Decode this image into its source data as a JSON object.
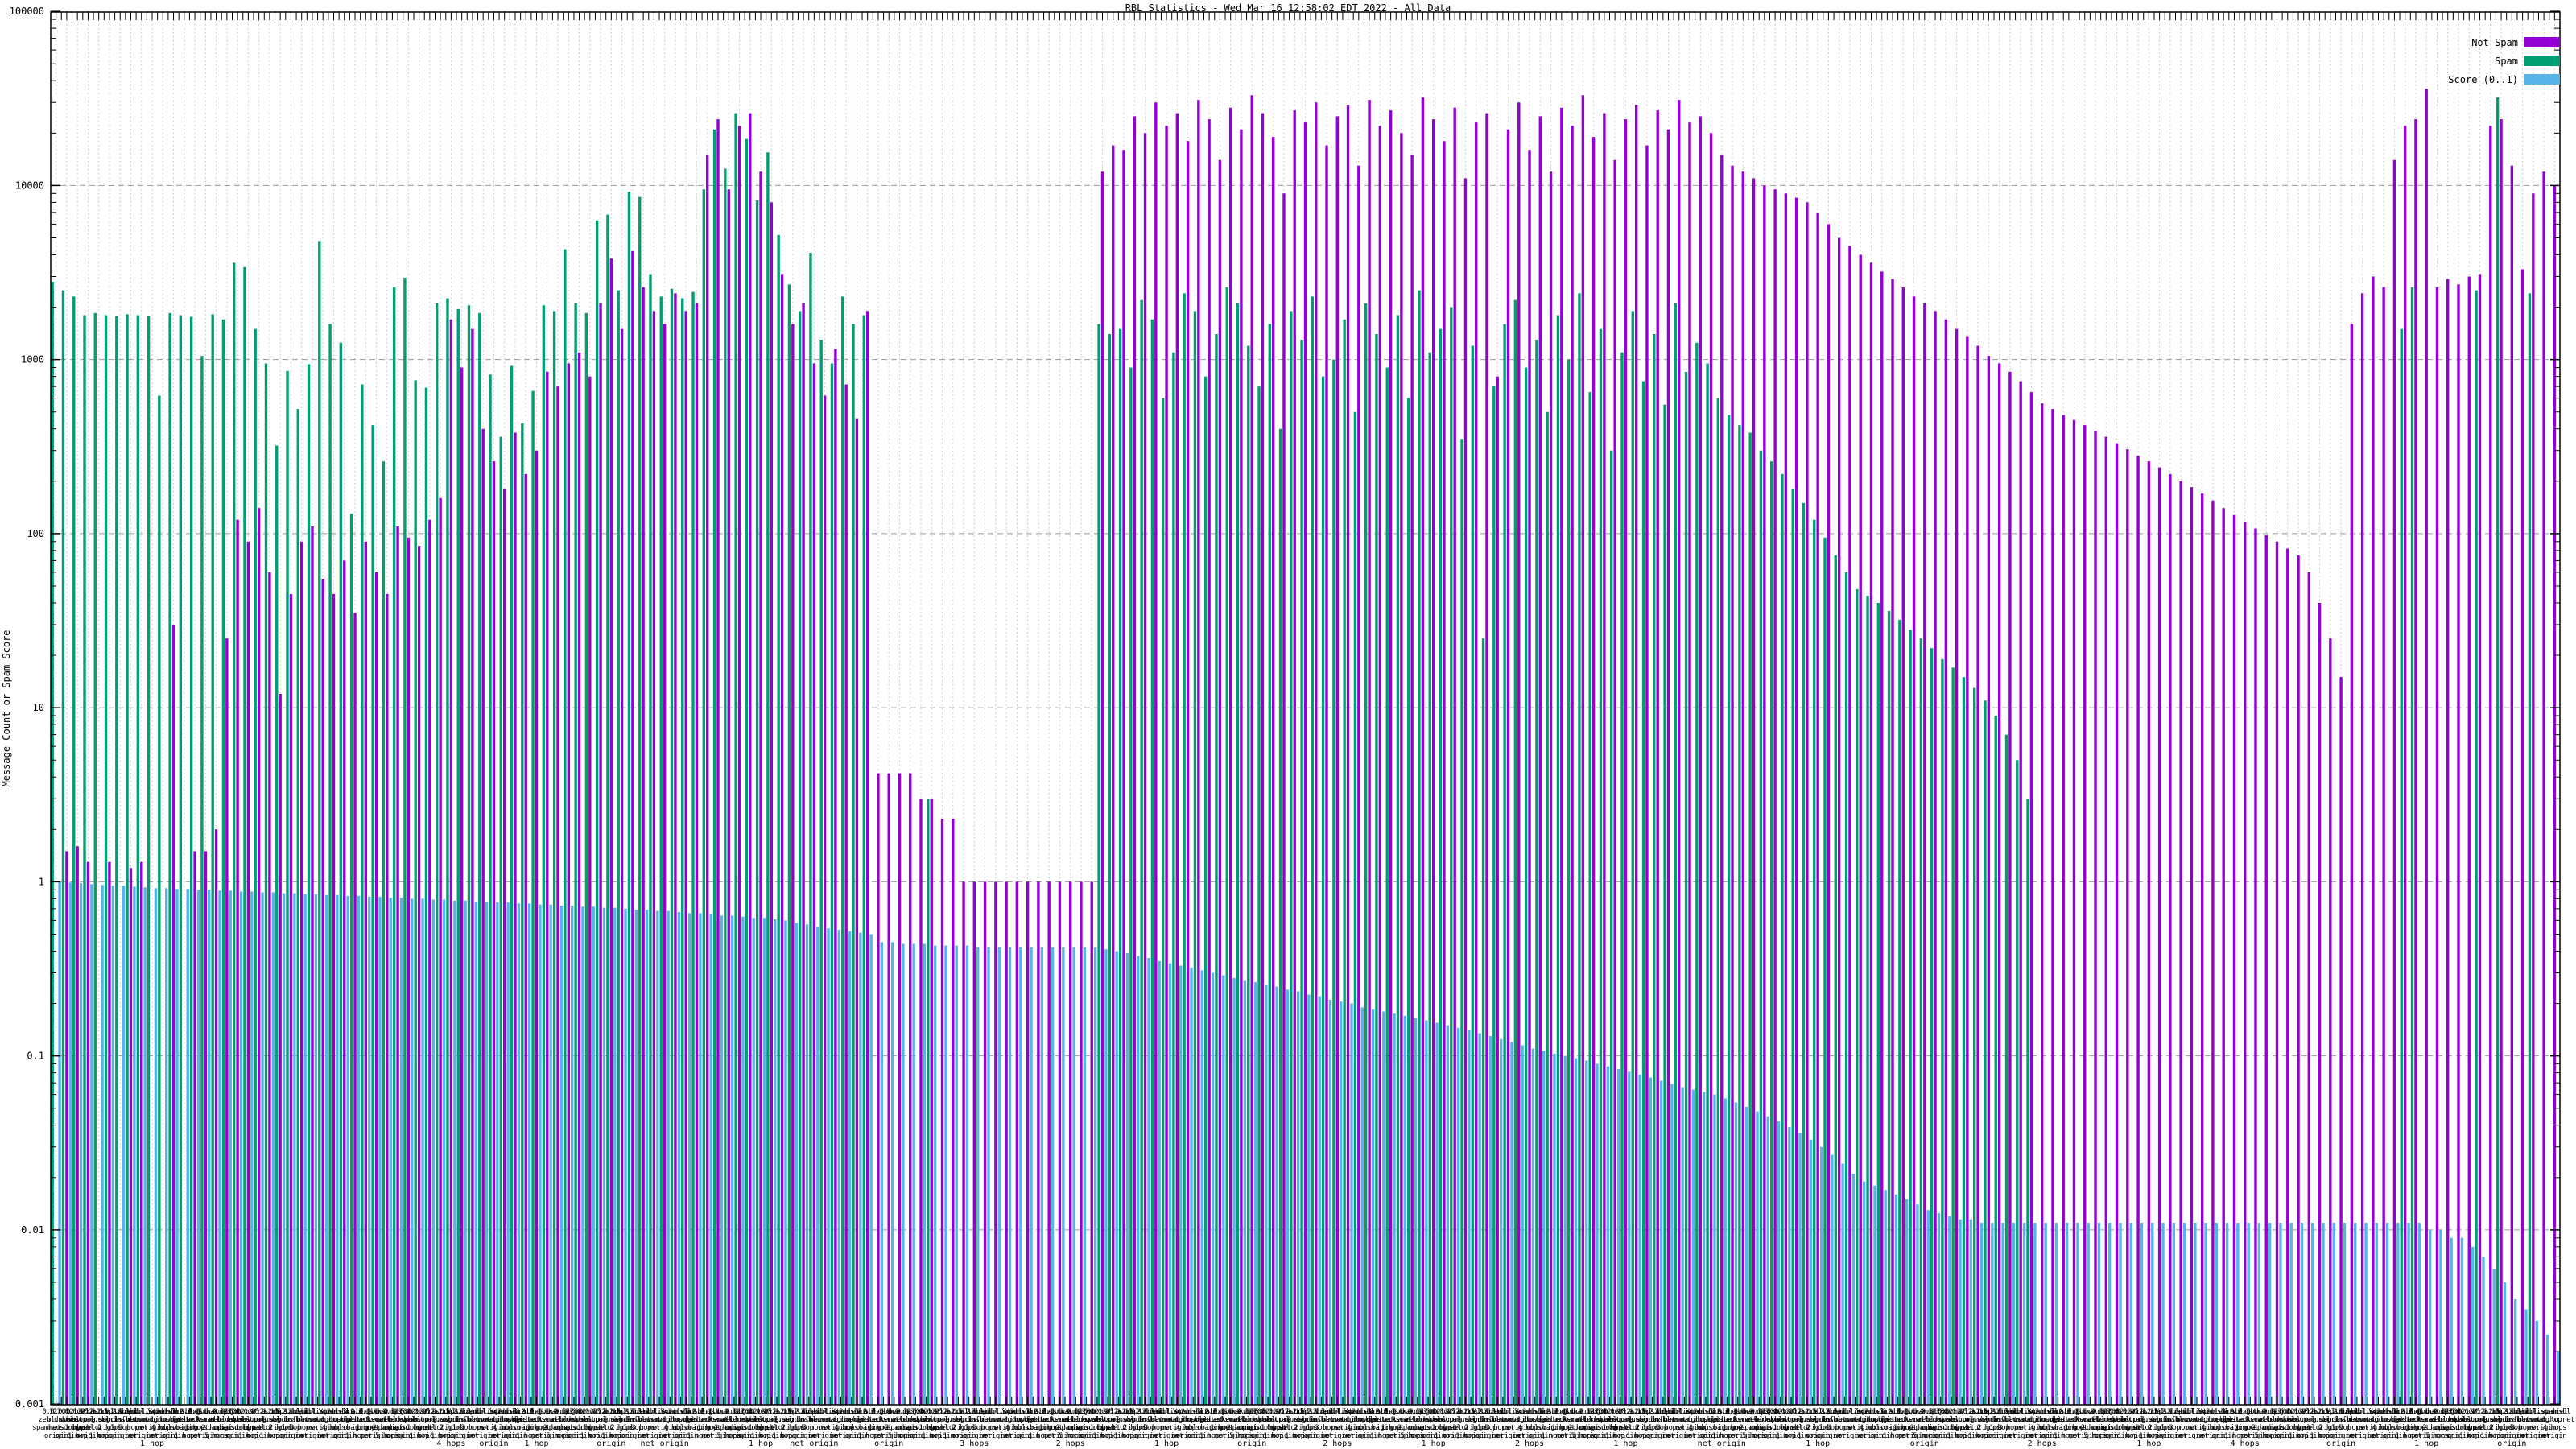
{
  "title": "RBL Statistics - Wed Mar 16 12:58:02 EDT 2022 - All Data",
  "colors": {
    "not_spam": "#9400d3",
    "spam": "#009e73",
    "score": "#56b4e9",
    "grid_major": "#999999",
    "grid_minor": "#bfbfbf",
    "frame": "#000000",
    "background": "#ffffff",
    "text": "#000000"
  },
  "y_axis": {
    "label": "Message Count or Spam Score",
    "scale": "log",
    "min": 0.001,
    "max": 100000,
    "tick_labels": [
      "100000",
      "10000",
      "1000",
      "100",
      "10",
      "1",
      "0.1",
      "0.01",
      "0.001"
    ]
  },
  "legend": [
    {
      "label": "Not Spam",
      "color_key": "not_spam"
    },
    {
      "label": "Spam",
      "color_key": "spam"
    },
    {
      "label": "Score (0..1)",
      "color_key": "score"
    }
  ],
  "x_axis": {
    "description": "235 RBL test categories; wrapped multi-line RBL names overlap illegibly along the axis",
    "legible_fragments": [
      {
        "index": 9,
        "text": "1 hop"
      },
      {
        "index": 37,
        "text": "4 hops"
      },
      {
        "index": 41,
        "text": "origin"
      },
      {
        "index": 45,
        "text": "1 hop"
      },
      {
        "index": 52,
        "text": "origin"
      },
      {
        "index": 57,
        "text": "net origin"
      },
      {
        "index": 66,
        "text": "1 hop"
      },
      {
        "index": 71,
        "text": "net origin"
      },
      {
        "index": 78,
        "text": "origin"
      },
      {
        "index": 86,
        "text": "3 hops"
      },
      {
        "index": 95,
        "text": "2 hops"
      },
      {
        "index": 104,
        "text": "1 hop"
      },
      {
        "index": 112,
        "text": "origin"
      },
      {
        "index": 120,
        "text": "2 hops"
      },
      {
        "index": 129,
        "text": "1 hop"
      },
      {
        "index": 138,
        "text": "2 hops"
      },
      {
        "index": 147,
        "text": "1 hop"
      },
      {
        "index": 156,
        "text": "net origin"
      },
      {
        "index": 165,
        "text": "1 hop"
      },
      {
        "index": 175,
        "text": "origin"
      },
      {
        "index": 186,
        "text": "2 hops"
      },
      {
        "index": 196,
        "text": "1 hop"
      },
      {
        "index": 205,
        "text": "4 hops"
      },
      {
        "index": 214,
        "text": "origin"
      },
      {
        "index": 222,
        "text": "1 hop"
      },
      {
        "index": 230,
        "text": "origin"
      }
    ]
  },
  "chart_data": {
    "type": "bar",
    "y_scale": "log",
    "ylim": [
      0.001,
      100000
    ],
    "n_categories": 235,
    "legend_position": "top-right",
    "grid": true,
    "series": [
      {
        "name": "Not Spam",
        "color_key": "not_spam",
        "values": [
          null,
          1.5,
          1.6,
          1.3,
          null,
          1.3,
          null,
          1.2,
          1.3,
          null,
          null,
          30,
          null,
          1.5,
          1.5,
          2,
          25,
          120,
          90,
          140,
          60,
          12,
          45,
          90,
          110,
          55,
          45,
          70,
          35,
          90,
          60,
          45,
          110,
          95,
          85,
          120,
          160,
          1700,
          900,
          1500,
          400,
          260,
          180,
          380,
          220,
          300,
          850,
          700,
          950,
          1100,
          800,
          2100,
          3800,
          1500,
          4200,
          2600,
          1900,
          1600,
          2400,
          1900,
          2100,
          15000,
          24000,
          9500,
          22000,
          26000,
          12000,
          8000,
          3100,
          1600,
          2100,
          950,
          620,
          1150,
          720,
          460,
          1900,
          4.2,
          4.2,
          4.2,
          4.2,
          3,
          3,
          2.3,
          2.3,
          1,
          1,
          1,
          1,
          1,
          1,
          1,
          1,
          1,
          1,
          1,
          1,
          1,
          12000,
          17000,
          16000,
          25000,
          20000,
          30000,
          22000,
          26000,
          18000,
          31000,
          24000,
          14000,
          28000,
          21000,
          33000,
          26000,
          19000,
          9000,
          27000,
          23000,
          30000,
          17000,
          25000,
          29000,
          13000,
          31000,
          22000,
          27000,
          20000,
          15000,
          32000,
          24000,
          18000,
          28000,
          11000,
          23000,
          26000,
          800,
          21000,
          30000,
          16000,
          25000,
          12000,
          28000,
          22000,
          33000,
          19000,
          26000,
          14000,
          24000,
          29000,
          17000,
          27000,
          21000,
          31000,
          23000,
          25000,
          20000,
          15000,
          13000,
          12000,
          11000,
          10000,
          9500,
          9000,
          8500,
          8000,
          7000,
          6000,
          5000,
          4500,
          4000,
          3600,
          3200,
          2900,
          2600,
          2300,
          2100,
          1900,
          1700,
          1500,
          1350,
          1200,
          1050,
          950,
          850,
          750,
          650,
          560,
          520,
          480,
          450,
          420,
          390,
          360,
          330,
          305,
          280,
          260,
          240,
          220,
          200,
          185,
          170,
          155,
          140,
          128,
          117,
          107,
          98,
          90,
          82,
          75,
          60,
          40,
          25,
          15,
          1600,
          2400,
          3000,
          2600,
          14000,
          22000,
          24000,
          36000,
          2600,
          2900,
          2700,
          3000,
          3100,
          22000,
          24000,
          13000,
          3300,
          9000,
          12000,
          10000
        ]
      },
      {
        "name": "Spam",
        "color_key": "spam",
        "values": [
          2800,
          2500,
          2300,
          1800,
          1850,
          1800,
          1780,
          1820,
          1800,
          1790,
          620,
          1850,
          1800,
          1760,
          1050,
          1820,
          1700,
          3600,
          3400,
          1500,
          950,
          320,
          860,
          520,
          940,
          4800,
          1600,
          1250,
          130,
          720,
          420,
          260,
          2600,
          2950,
          760,
          690,
          2100,
          2250,
          1950,
          2050,
          1850,
          820,
          360,
          920,
          430,
          660,
          2050,
          1900,
          4300,
          2100,
          1850,
          6300,
          6800,
          2500,
          9200,
          8600,
          3100,
          2300,
          2550,
          2250,
          2450,
          9500,
          21000,
          12500,
          26000,
          18500,
          8200,
          15500,
          5200,
          2700,
          1900,
          4100,
          1300,
          950,
          2300,
          1600,
          1800,
          null,
          null,
          null,
          null,
          null,
          3,
          null,
          null,
          null,
          null,
          null,
          null,
          null,
          null,
          null,
          null,
          null,
          null,
          null,
          null,
          null,
          1600,
          1400,
          1500,
          900,
          2200,
          1700,
          600,
          1100,
          2400,
          1900,
          800,
          1400,
          2600,
          2100,
          1200,
          700,
          1600,
          400,
          1900,
          1300,
          2300,
          800,
          1000,
          1700,
          500,
          2100,
          1400,
          900,
          1800,
          600,
          2500,
          1100,
          1500,
          2000,
          350,
          1200,
          25,
          700,
          1600,
          2200,
          900,
          1300,
          500,
          1800,
          1000,
          2400,
          650,
          1500,
          300,
          1100,
          1900,
          750,
          1400,
          550,
          2100,
          850,
          1250,
          950,
          600,
          480,
          420,
          380,
          300,
          260,
          220,
          180,
          150,
          120,
          95,
          75,
          60,
          48,
          44,
          40,
          36,
          32,
          28,
          25,
          22,
          19,
          17,
          15,
          13,
          11,
          9,
          7,
          5,
          3,
          null,
          null,
          null,
          null,
          null,
          null,
          null,
          null,
          null,
          null,
          null,
          null,
          null,
          null,
          null,
          null,
          null,
          null,
          null,
          null,
          null,
          null,
          null,
          null,
          null,
          null,
          null,
          null,
          null,
          null,
          null,
          null,
          null,
          null,
          1500,
          2600,
          null,
          null,
          null,
          null,
          null,
          2500,
          null,
          32000,
          null,
          null,
          2400,
          null,
          null
        ]
      },
      {
        "name": "Score (0..1)",
        "color_key": "score",
        "values": [
          1.0,
          0.99,
          0.98,
          0.97,
          0.96,
          0.95,
          0.95,
          0.94,
          0.93,
          0.92,
          0.92,
          0.91,
          0.91,
          0.9,
          0.9,
          0.89,
          0.89,
          0.88,
          0.88,
          0.87,
          0.87,
          0.86,
          0.86,
          0.85,
          0.85,
          0.84,
          0.84,
          0.83,
          0.83,
          0.82,
          0.82,
          0.81,
          0.81,
          0.8,
          0.8,
          0.79,
          0.79,
          0.78,
          0.78,
          0.77,
          0.77,
          0.76,
          0.76,
          0.75,
          0.75,
          0.74,
          0.74,
          0.73,
          0.73,
          0.72,
          0.72,
          0.71,
          0.71,
          0.7,
          0.69,
          0.69,
          0.68,
          0.68,
          0.67,
          0.66,
          0.66,
          0.65,
          0.64,
          0.64,
          0.63,
          0.62,
          0.62,
          0.61,
          0.6,
          0.58,
          0.57,
          0.55,
          0.54,
          0.53,
          0.52,
          0.51,
          0.5,
          0.45,
          0.45,
          0.44,
          0.44,
          0.44,
          0.43,
          0.43,
          0.43,
          0.43,
          0.42,
          0.42,
          0.42,
          0.42,
          0.42,
          0.42,
          0.42,
          0.42,
          0.42,
          0.42,
          0.42,
          0.42,
          0.41,
          0.4,
          0.39,
          0.375,
          0.365,
          0.35,
          0.34,
          0.33,
          0.32,
          0.31,
          0.3,
          0.29,
          0.28,
          0.27,
          0.265,
          0.255,
          0.25,
          0.24,
          0.235,
          0.225,
          0.22,
          0.21,
          0.205,
          0.2,
          0.19,
          0.185,
          0.18,
          0.175,
          0.17,
          0.165,
          0.16,
          0.155,
          0.15,
          0.145,
          0.14,
          0.135,
          0.13,
          0.125,
          0.12,
          0.115,
          0.11,
          0.107,
          0.103,
          0.1,
          0.097,
          0.094,
          0.09,
          0.087,
          0.084,
          0.081,
          0.078,
          0.075,
          0.072,
          0.069,
          0.066,
          0.064,
          0.062,
          0.06,
          0.057,
          0.054,
          0.051,
          0.048,
          0.045,
          0.042,
          0.039,
          0.036,
          0.033,
          0.03,
          0.027,
          0.024,
          0.021,
          0.019,
          0.018,
          0.017,
          0.016,
          0.015,
          0.014,
          0.013,
          0.0125,
          0.012,
          0.0115,
          0.0115,
          0.011,
          0.011,
          0.011,
          0.011,
          0.011,
          0.011,
          0.011,
          0.011,
          0.011,
          0.011,
          0.011,
          0.011,
          0.011,
          0.011,
          0.011,
          0.011,
          0.011,
          0.011,
          0.011,
          0.011,
          0.011,
          0.011,
          0.011,
          0.011,
          0.011,
          0.011,
          0.011,
          0.011,
          0.011,
          0.011,
          0.011,
          0.011,
          0.011,
          0.011,
          0.011,
          0.011,
          0.011,
          0.011,
          0.011,
          0.011,
          0.011,
          0.011,
          0.01,
          0.01,
          0.009,
          0.009,
          0.008,
          0.007,
          0.006,
          0.005,
          0.004,
          0.0035,
          0.003,
          0.0025,
          0.002
        ]
      }
    ],
    "category_label_samples": [
      [
        "0.0.0.0",
        "zen.dnsbl",
        "spamhaus.org",
        "origin"
      ],
      [
        "127.0.0.2",
        "bl.spamcop",
        "net 1 hop",
        "origin"
      ],
      [
        "1.0.2.3.list",
        "dnsbl.org",
        "sorbs.net",
        "1 hop"
      ],
      [
        "b.barracuda",
        "central.org",
        "dnsbl 2",
        "origin"
      ],
      [
        "V.2.2.ips",
        "score.sender",
        "net origin",
        "1 hop"
      ],
      [
        "0.1.13.2.bzen",
        "dnsbl.info",
        "2 hops",
        "origin"
      ],
      [
        "dul.dnsbl",
        "sorbs.net",
        "1 hop",
        "origin"
      ],
      [
        "V.12.2.2.list",
        "dnsbl.net",
        "3 hops",
        "net"
      ],
      [
        "sbl-xbl.spam",
        "haus.org",
        "net",
        "origin"
      ],
      [
        "psbl.surriel",
        "com 1 hop",
        "origin",
        "net"
      ],
      [
        "ix.dnsbl",
        "manitu.net",
        "4 hops",
        "origin"
      ],
      [
        "V.2.1.3.2.1.1",
        "dnsblist",
        "ubl.bar",
        "origin"
      ],
      [
        "truncate.gbu",
        "dge.net",
        "origin",
        "1 hop"
      ],
      [
        "dnsbl-1.uce",
        "protect.net",
        "1 hop",
        "net"
      ],
      [
        "0.3.1.1.0.ips",
        "backscatter",
        "org 2 hops",
        "origin"
      ],
      [
        "hostkarma.jun",
        "kemail.net",
        "net origin",
        "5 hops"
      ]
    ]
  }
}
